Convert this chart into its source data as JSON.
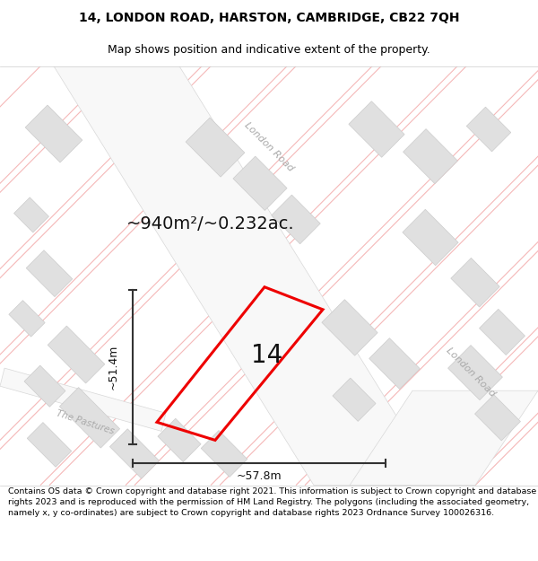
{
  "title_line1": "14, LONDON ROAD, HARSTON, CAMBRIDGE, CB22 7QH",
  "title_line2": "Map shows position and indicative extent of the property.",
  "footer_text": "Contains OS data © Crown copyright and database right 2021. This information is subject to Crown copyright and database rights 2023 and is reproduced with the permission of HM Land Registry. The polygons (including the associated geometry, namely x, y co-ordinates) are subject to Crown copyright and database rights 2023 Ordnance Survey 100026316.",
  "area_text": "~940m²/~0.232ac.",
  "number_label": "14",
  "width_label": "~57.8m",
  "height_label": "~51.4m",
  "road_label_upper": "London Road",
  "road_label_lower": "London Road",
  "road_label_pastures": "The Pastures",
  "map_bg": "#ffffff",
  "bldg_fill": "#e0e0e0",
  "bldg_edge": "#cccccc",
  "pink": "#f5b8b8",
  "plot_edge": "#ee0000",
  "dim_color": "#333333",
  "text_color": "#111111",
  "road_text_color": "#aaaaaa",
  "title_fontsize": 10,
  "subtitle_fontsize": 9,
  "footer_fontsize": 6.8,
  "area_fontsize": 14,
  "label_fontsize": 20,
  "dim_fontsize": 9,
  "road_fontsize": 8,
  "road_fontsize_sm": 7.5
}
